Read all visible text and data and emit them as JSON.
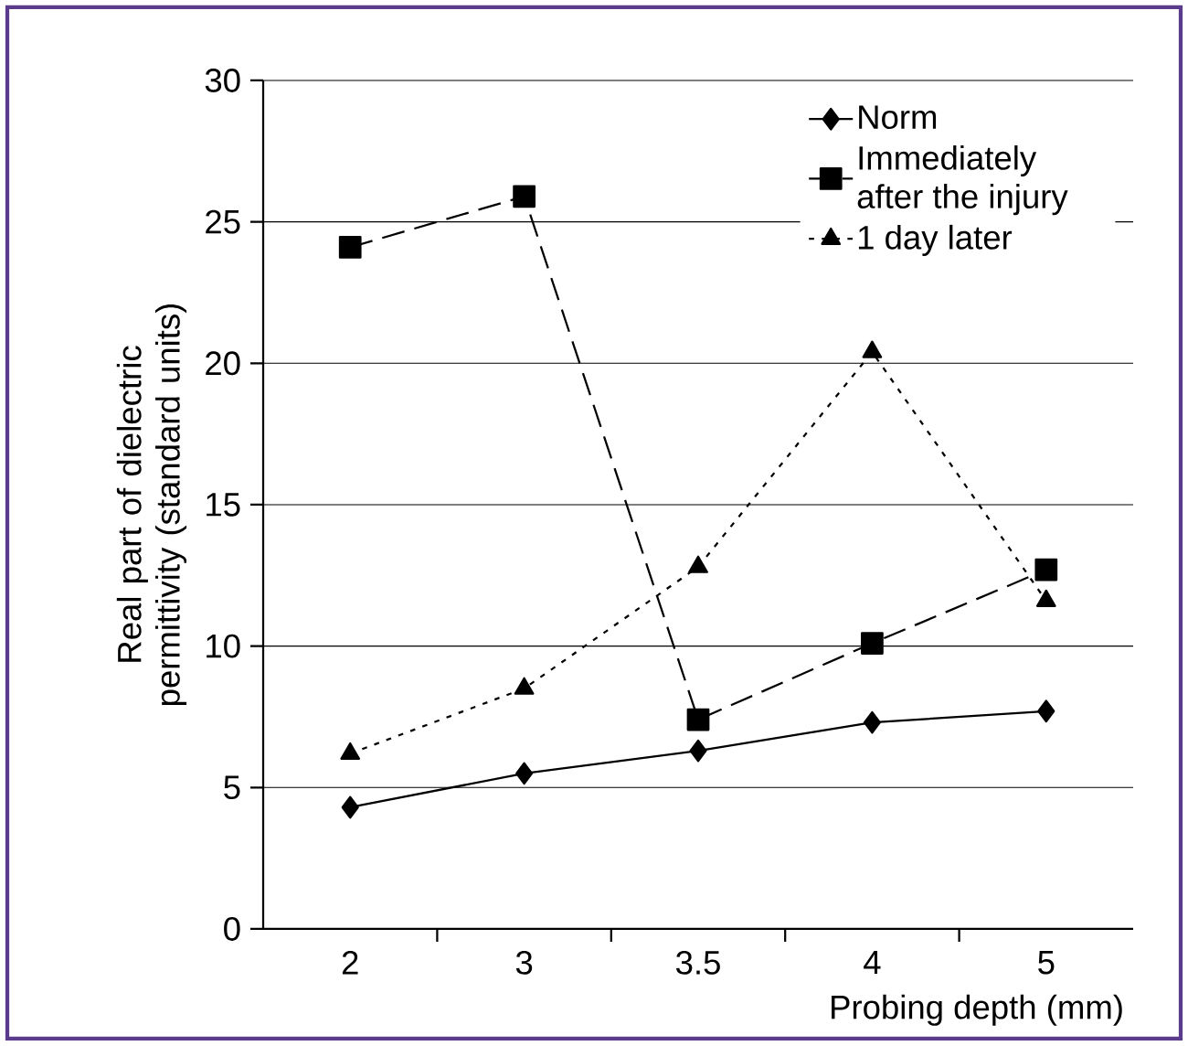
{
  "chart_data": {
    "type": "line",
    "xlabel": "Probing depth (mm)",
    "ylabel": "Real part of dielectric permittivity (standard units)",
    "categories": [
      "2",
      "3",
      "3.5",
      "4",
      "5"
    ],
    "series": [
      {
        "name": "Norm",
        "color": "#000000",
        "marker": "diamond",
        "line_style": "solid",
        "values": [
          4.3,
          5.5,
          6.3,
          7.3,
          7.7
        ]
      },
      {
        "name": "Immediately after the injury",
        "color": "#000000",
        "marker": "square",
        "line_style": "dashed",
        "values": [
          24.1,
          25.9,
          7.4,
          10.1,
          12.7
        ]
      },
      {
        "name": "1 day later",
        "color": "#000000",
        "marker": "triangle",
        "line_style": "dotted",
        "values": [
          6.2,
          8.5,
          12.8,
          20.4,
          11.6
        ]
      }
    ],
    "ylim": [
      0,
      30
    ],
    "yticks": [
      0,
      5,
      10,
      15,
      20,
      25,
      30
    ],
    "grid": "y",
    "legend": "top right"
  }
}
